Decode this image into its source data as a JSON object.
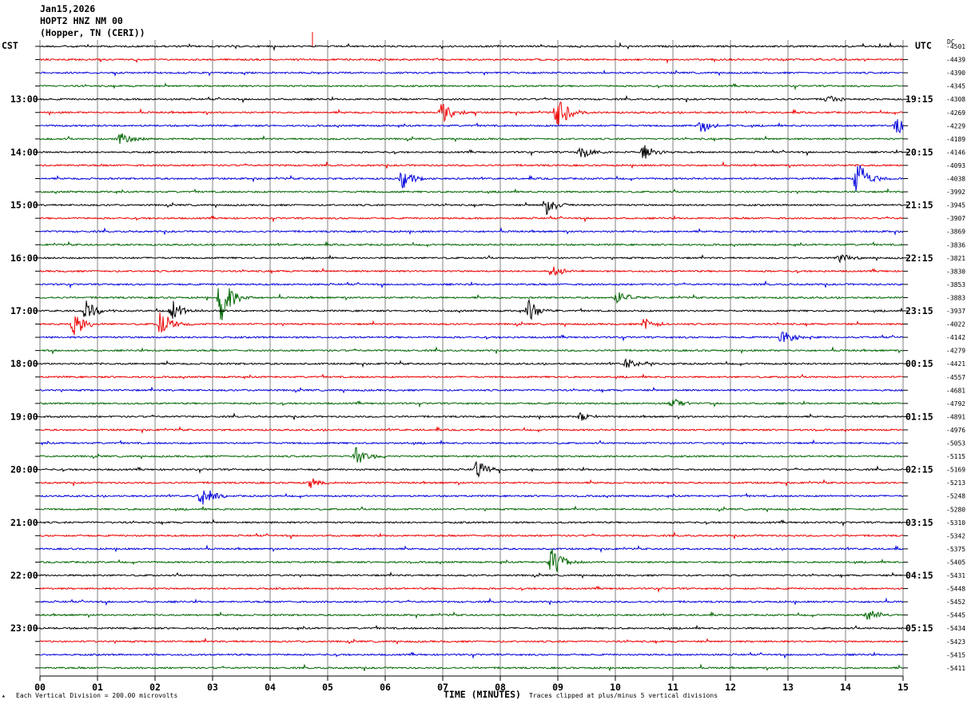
{
  "header": {
    "date": "Jan15,2026",
    "station": "HOPT2 HNZ NM 00",
    "location": "(Hopper, TN (CERI))"
  },
  "left_zone": "CST",
  "right_zone": "UTC",
  "dc_label": "DC",
  "footer": {
    "scale": "Each Vertical Division =  200.00 microvolts",
    "clip": "Traces clipped at plus/minus 5 vertical divisions"
  },
  "colors": {
    "trace_cycle": [
      "#000000",
      "#ee0000",
      "#0000dd",
      "#006600"
    ],
    "grid": "#808080"
  },
  "chart_data": {
    "type": "line",
    "xlabel": "TIME (MINUTES)",
    "x_ticks": [
      "00",
      "01",
      "02",
      "03",
      "04",
      "05",
      "06",
      "07",
      "08",
      "09",
      "10",
      "11",
      "12",
      "13",
      "14",
      "15"
    ],
    "xlim": [
      0,
      15
    ],
    "left_hour_labels": [
      "13:00",
      "14:00",
      "15:00",
      "16:00",
      "17:00",
      "18:00",
      "19:00",
      "20:00",
      "21:00",
      "22:00",
      "23:00"
    ],
    "right_hour_labels": [
      "19:15",
      "20:15",
      "21:15",
      "22:15",
      "23:15",
      "00:15",
      "01:15",
      "02:15",
      "03:15",
      "04:15",
      "05:15"
    ],
    "dc_offsets": [
      "-4501",
      "-4439",
      "-4390",
      "-4345",
      "-4308",
      "-4269",
      "-4229",
      "-4189",
      "-4146",
      "-4093",
      "-4038",
      "-3992",
      "-3945",
      "-3907",
      "-3869",
      "-3836",
      "-3821",
      "-3830",
      "-3853",
      "-3883",
      "-3937",
      "-4022",
      "-4142",
      "-4279",
      "-4421",
      "-4557",
      "-4681",
      "-4792",
      "-4891",
      "-4976",
      "-5053",
      "-5115",
      "-5169",
      "-5213",
      "-5248",
      "-5280",
      "-5310",
      "-5342",
      "-5375",
      "-5405",
      "-5431",
      "-5448",
      "-5452",
      "-5445",
      "-5434",
      "-5423",
      "-5415",
      "-5411"
    ],
    "events": [
      {
        "trace": 4,
        "minute": 13.7,
        "amp": 8
      },
      {
        "trace": 5,
        "minute": 7.0,
        "amp": 16
      },
      {
        "trace": 5,
        "minute": 9.0,
        "amp": 22
      },
      {
        "trace": 6,
        "minute": 11.5,
        "amp": 10
      },
      {
        "trace": 6,
        "minute": 14.9,
        "amp": 14
      },
      {
        "trace": 7,
        "minute": 1.4,
        "amp": 10
      },
      {
        "trace": 8,
        "minute": 9.4,
        "amp": 10
      },
      {
        "trace": 8,
        "minute": 10.5,
        "amp": 12
      },
      {
        "trace": 10,
        "minute": 6.3,
        "amp": 14
      },
      {
        "trace": 10,
        "minute": 14.2,
        "amp": 26
      },
      {
        "trace": 12,
        "minute": 8.8,
        "amp": 14
      },
      {
        "trace": 16,
        "minute": 13.9,
        "amp": 6
      },
      {
        "trace": 17,
        "minute": 8.9,
        "amp": 8
      },
      {
        "trace": 19,
        "minute": 3.15,
        "amp": 34
      },
      {
        "trace": 19,
        "minute": 10.05,
        "amp": 10
      },
      {
        "trace": 20,
        "minute": 0.8,
        "amp": 14
      },
      {
        "trace": 20,
        "minute": 2.3,
        "amp": 16
      },
      {
        "trace": 20,
        "minute": 8.5,
        "amp": 14
      },
      {
        "trace": 21,
        "minute": 0.6,
        "amp": 18
      },
      {
        "trace": 21,
        "minute": 2.1,
        "amp": 18
      },
      {
        "trace": 21,
        "minute": 10.5,
        "amp": 8
      },
      {
        "trace": 22,
        "minute": 12.9,
        "amp": 10
      },
      {
        "trace": 24,
        "minute": 10.2,
        "amp": 8
      },
      {
        "trace": 27,
        "minute": 11.0,
        "amp": 6
      },
      {
        "trace": 28,
        "minute": 9.4,
        "amp": 6
      },
      {
        "trace": 31,
        "minute": 5.5,
        "amp": 12
      },
      {
        "trace": 32,
        "minute": 7.6,
        "amp": 12
      },
      {
        "trace": 33,
        "minute": 4.7,
        "amp": 8
      },
      {
        "trace": 34,
        "minute": 2.8,
        "amp": 16
      },
      {
        "trace": 39,
        "minute": 8.9,
        "amp": 20
      },
      {
        "trace": 43,
        "minute": 14.4,
        "amp": 8
      }
    ]
  }
}
